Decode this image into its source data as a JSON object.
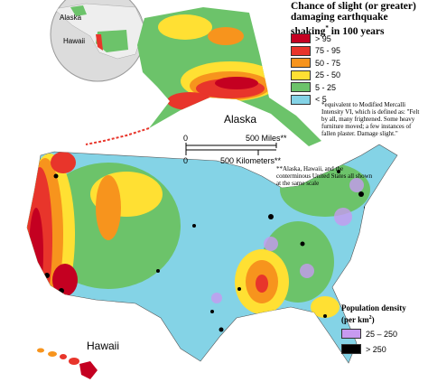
{
  "title": "Chance of slight (or greater) damaging earthquake shaking",
  "title_mark": "*",
  "title_end": "in 100 years",
  "legend": [
    {
      "label": "> 95",
      "color": "#c40021"
    },
    {
      "label": "75 - 95",
      "color": "#e8352b"
    },
    {
      "label": "50 - 75",
      "color": "#f7941d"
    },
    {
      "label": "25 - 50",
      "color": "#ffe033"
    },
    {
      "label": "5 - 25",
      "color": "#6cc36a"
    },
    {
      "label": "< 5",
      "color": "#84d3e6"
    }
  ],
  "footnote": "*equivalent to Modified Mercalli Intensity VI, which is defined as: \"Felt by all, many frightened. Some heavy furniture moved; a few instances of fallen plaster. Damage slight.\"",
  "scale_note": "**Alaska, Hawaii, and the conterminous United States all shown at the same scale",
  "scale_bar": {
    "miles_zero": "0",
    "miles": "500 Miles**",
    "km_zero": "0",
    "km": "500 Kilometers**"
  },
  "labels": {
    "alaska": "Alaska",
    "hawaii": "Hawaii",
    "inset_alaska": "Alaska",
    "inset_hawaii": "Hawaii"
  },
  "population": {
    "title": "Population density",
    "unit": "(per km",
    "unit_power": "2",
    "unit_close": ")",
    "items": [
      {
        "label": "25 – 250",
        "color": "#c79af0"
      },
      {
        "label": "> 250",
        "color": "#000000"
      }
    ]
  }
}
